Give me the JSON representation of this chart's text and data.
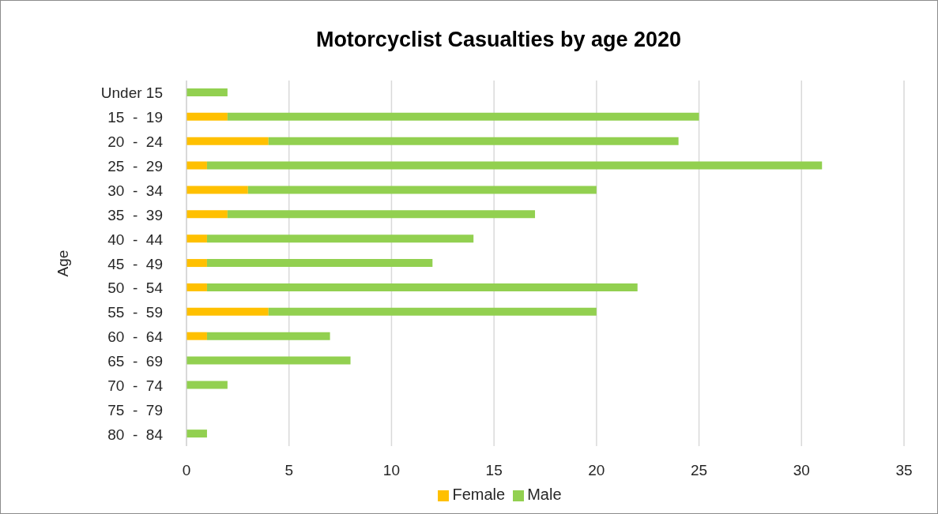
{
  "chart_data": {
    "type": "bar",
    "title": "Motorcyclist Casualties by age 2020",
    "ylabel": "Age",
    "orientation": "horizontal",
    "stacked": true,
    "categories": [
      "Under 15",
      "15  -  19",
      "20  -  24",
      "25  -  29",
      "30  -  34",
      "35  -  39",
      "40  -  44",
      "45  -  49",
      "50  -  54",
      "55  -  59",
      "60  -  64",
      "65  -  69",
      "70  -  74",
      "75  -  79",
      "80  -  84"
    ],
    "series": [
      {
        "name": "Female",
        "color": "#ffc000",
        "values": [
          0,
          2,
          4,
          1,
          3,
          2,
          1,
          1,
          1,
          4,
          1,
          0,
          0,
          0,
          0
        ]
      },
      {
        "name": "Male",
        "color": "#92d050",
        "values": [
          2,
          23,
          20,
          30,
          17,
          15,
          13,
          11,
          21,
          16,
          6,
          8,
          2,
          0,
          1
        ]
      }
    ],
    "xlim": [
      0,
      35
    ],
    "xticks": [
      0,
      5,
      10,
      15,
      20,
      25,
      30,
      35
    ],
    "grid": "x",
    "legend": "bottom"
  }
}
